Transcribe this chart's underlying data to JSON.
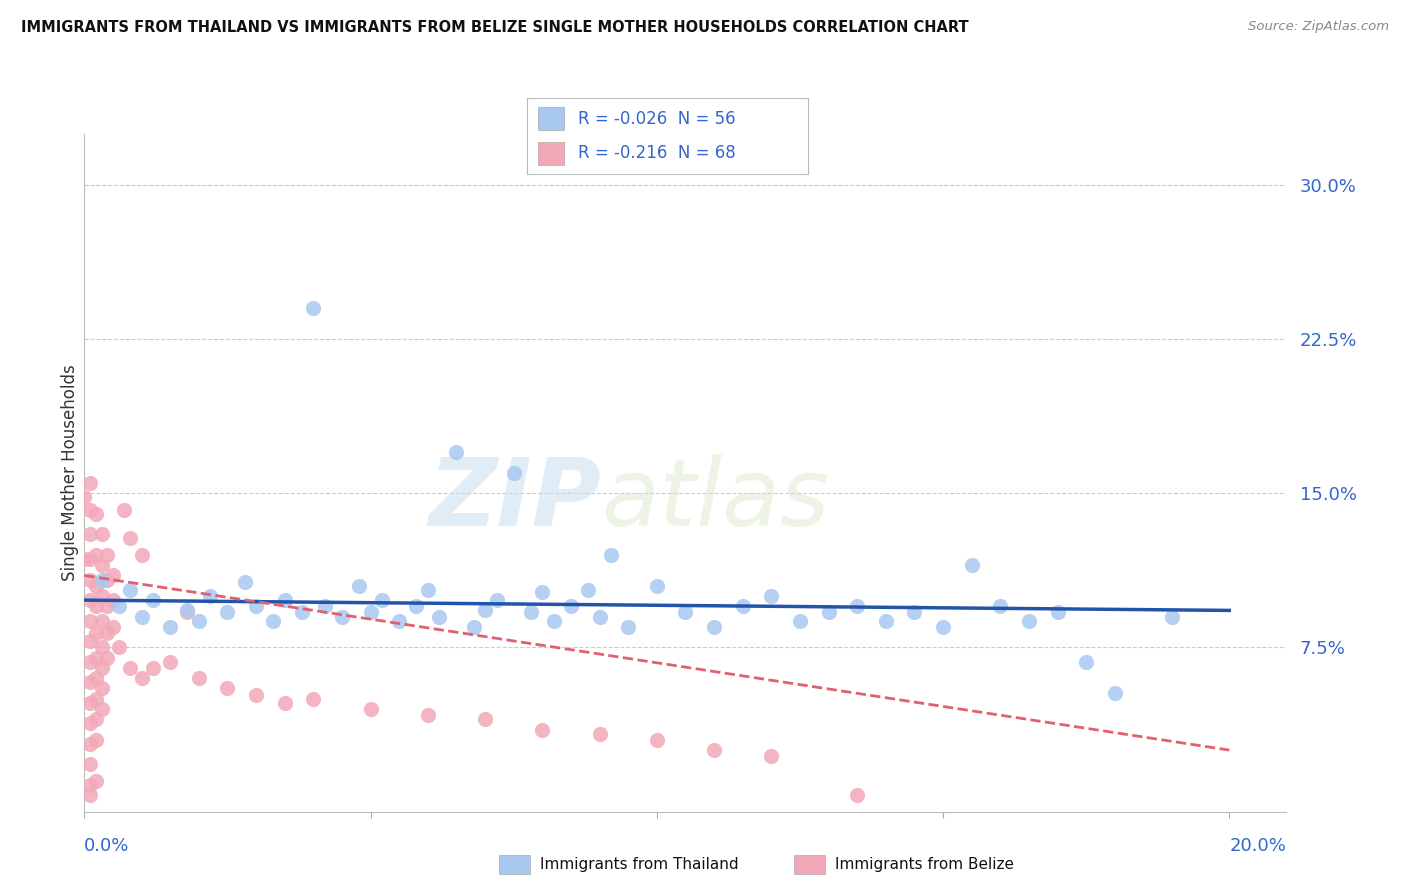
{
  "title": "IMMIGRANTS FROM THAILAND VS IMMIGRANTS FROM BELIZE SINGLE MOTHER HOUSEHOLDS CORRELATION CHART",
  "source": "Source: ZipAtlas.com",
  "ylabel": "Single Mother Households",
  "x_range": [
    0.0,
    0.21
  ],
  "y_range": [
    -0.005,
    0.325
  ],
  "y_ticks": [
    0.0,
    0.075,
    0.15,
    0.225,
    0.3
  ],
  "y_tick_labels": [
    "",
    "7.5%",
    "15.0%",
    "22.5%",
    "30.0%"
  ],
  "watermark_zip": "ZIP",
  "watermark_atlas": "atlas",
  "thailand_color": "#a8c8f0",
  "belize_color": "#f2a8b8",
  "thailand_line_color": "#2255aa",
  "belize_line_color": "#e06070",
  "legend_r1_val": "-0.026",
  "legend_n1_val": "56",
  "legend_r2_val": "-0.216",
  "legend_n2_val": "68",
  "thailand_scatter_x": [
    0.003,
    0.006,
    0.008,
    0.01,
    0.012,
    0.015,
    0.018,
    0.02,
    0.022,
    0.025,
    0.028,
    0.03,
    0.033,
    0.035,
    0.038,
    0.04,
    0.042,
    0.045,
    0.048,
    0.05,
    0.052,
    0.055,
    0.058,
    0.06,
    0.062,
    0.065,
    0.068,
    0.07,
    0.072,
    0.075,
    0.078,
    0.08,
    0.082,
    0.085,
    0.088,
    0.09,
    0.092,
    0.095,
    0.1,
    0.105,
    0.11,
    0.115,
    0.12,
    0.125,
    0.13,
    0.135,
    0.14,
    0.145,
    0.15,
    0.155,
    0.16,
    0.165,
    0.17,
    0.175,
    0.18,
    0.19
  ],
  "thailand_scatter_y": [
    0.108,
    0.095,
    0.103,
    0.09,
    0.098,
    0.085,
    0.093,
    0.088,
    0.1,
    0.092,
    0.107,
    0.095,
    0.088,
    0.098,
    0.092,
    0.24,
    0.095,
    0.09,
    0.105,
    0.092,
    0.098,
    0.088,
    0.095,
    0.103,
    0.09,
    0.17,
    0.085,
    0.093,
    0.098,
    0.16,
    0.092,
    0.102,
    0.088,
    0.095,
    0.103,
    0.09,
    0.12,
    0.085,
    0.105,
    0.092,
    0.085,
    0.095,
    0.1,
    0.088,
    0.092,
    0.095,
    0.088,
    0.092,
    0.085,
    0.115,
    0.095,
    0.088,
    0.092,
    0.068,
    0.053,
    0.09
  ],
  "belize_scatter_x": [
    0.0,
    0.0,
    0.001,
    0.001,
    0.001,
    0.001,
    0.001,
    0.001,
    0.001,
    0.001,
    0.001,
    0.001,
    0.001,
    0.001,
    0.001,
    0.001,
    0.001,
    0.001,
    0.002,
    0.002,
    0.002,
    0.002,
    0.002,
    0.002,
    0.002,
    0.002,
    0.002,
    0.002,
    0.002,
    0.003,
    0.003,
    0.003,
    0.003,
    0.003,
    0.003,
    0.003,
    0.003,
    0.004,
    0.004,
    0.004,
    0.004,
    0.004,
    0.005,
    0.005,
    0.005,
    0.006,
    0.007,
    0.008,
    0.008,
    0.01,
    0.01,
    0.012,
    0.015,
    0.018,
    0.02,
    0.025,
    0.03,
    0.035,
    0.04,
    0.05,
    0.06,
    0.07,
    0.08,
    0.09,
    0.1,
    0.11,
    0.12,
    0.135
  ],
  "belize_scatter_y": [
    0.148,
    0.118,
    0.155,
    0.142,
    0.13,
    0.118,
    0.108,
    0.098,
    0.088,
    0.078,
    0.068,
    0.058,
    0.048,
    0.038,
    0.028,
    0.018,
    0.008,
    0.003,
    0.14,
    0.12,
    0.105,
    0.095,
    0.082,
    0.07,
    0.06,
    0.05,
    0.04,
    0.03,
    0.01,
    0.13,
    0.115,
    0.1,
    0.088,
    0.075,
    0.065,
    0.055,
    0.045,
    0.12,
    0.108,
    0.095,
    0.082,
    0.07,
    0.11,
    0.098,
    0.085,
    0.075,
    0.142,
    0.128,
    0.065,
    0.12,
    0.06,
    0.065,
    0.068,
    0.092,
    0.06,
    0.055,
    0.052,
    0.048,
    0.05,
    0.045,
    0.042,
    0.04,
    0.035,
    0.033,
    0.03,
    0.025,
    0.022,
    0.003
  ],
  "thailand_trend_x": [
    0.0,
    0.2
  ],
  "thailand_trend_y": [
    0.098,
    0.093
  ],
  "belize_trend_x": [
    0.0,
    0.2
  ],
  "belize_trend_y": [
    0.11,
    0.025
  ]
}
